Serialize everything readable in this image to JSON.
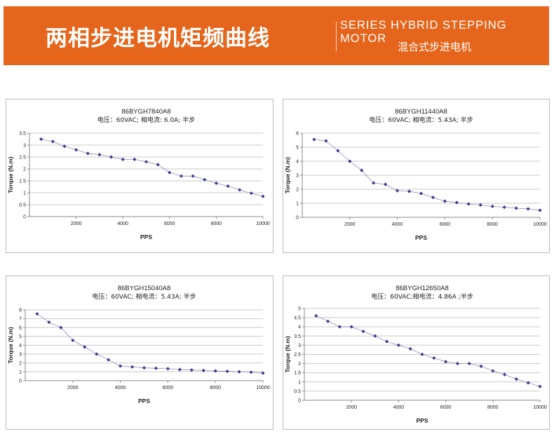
{
  "header": {
    "title_cn": "两相步进电机矩频曲线",
    "title_en": "SERIES HYBRID STEPPING MOTOR",
    "subtitle_cn": "混合式步进电机",
    "banner_color": "#e4651b"
  },
  "chart_data": [
    {
      "type": "line",
      "title": "86BYGH7840A8",
      "subtitle": "电压：60VAC; 相电流: 6.0A; 半步",
      "xlabel": "PPS",
      "ylabel": "Torque (N.m)",
      "xlim": [
        0,
        10000
      ],
      "ylim": [
        0,
        3.5
      ],
      "xticks": [
        2000,
        4000,
        6000,
        8000,
        10000
      ],
      "yticks": [
        0,
        0.5,
        1,
        1.5,
        2,
        2.5,
        3,
        3.5
      ],
      "grid": true,
      "marker_color": "#3d3d8f",
      "series": [
        {
          "x": [
            500,
            1000,
            1500,
            2000,
            2500,
            3000,
            3500,
            4000,
            4500,
            5000,
            5500,
            6000,
            6500,
            7000,
            7500,
            8000,
            8500,
            9000,
            9500,
            10000
          ],
          "y": [
            3.25,
            3.15,
            2.95,
            2.8,
            2.65,
            2.6,
            2.5,
            2.4,
            2.4,
            2.3,
            2.18,
            1.85,
            1.7,
            1.7,
            1.55,
            1.4,
            1.28,
            1.12,
            0.98,
            0.85
          ]
        }
      ]
    },
    {
      "type": "line",
      "title": "86BYGH11440A8",
      "subtitle": "电压：60VAC; 相电流：5.43A; 半步",
      "xlabel": "PPS",
      "ylabel": "Torque (N.m)",
      "xlim": [
        0,
        10000
      ],
      "ylim": [
        0,
        6
      ],
      "xticks": [
        2000,
        4000,
        6000,
        8000,
        10000
      ],
      "yticks": [
        0,
        1,
        2,
        3,
        4,
        5,
        6
      ],
      "grid": true,
      "marker_color": "#3d3d8f",
      "series": [
        {
          "x": [
            500,
            1000,
            1500,
            2000,
            2500,
            3000,
            3500,
            4000,
            4500,
            5000,
            5500,
            6000,
            6500,
            7000,
            7500,
            8000,
            8500,
            9000,
            9500,
            10000
          ],
          "y": [
            5.55,
            5.45,
            4.75,
            4.0,
            3.35,
            2.45,
            2.35,
            1.9,
            1.85,
            1.7,
            1.42,
            1.15,
            1.05,
            0.95,
            0.88,
            0.78,
            0.72,
            0.65,
            0.6,
            0.5
          ]
        }
      ]
    },
    {
      "type": "line",
      "title": "86BYGH15040A8",
      "subtitle": "电压：60VAC; 相电流：5.43A; 半步",
      "xlabel": "PPS",
      "ylabel": "Torque (N.m)",
      "xlim": [
        0,
        10000
      ],
      "ylim": [
        0,
        8
      ],
      "xticks": [
        2000,
        4000,
        6000,
        8000,
        10000
      ],
      "yticks": [
        0,
        1,
        2,
        3,
        4,
        5,
        6,
        7,
        8
      ],
      "grid": true,
      "marker_color": "#3d3d8f",
      "series": [
        {
          "x": [
            500,
            1000,
            1500,
            2000,
            2500,
            3000,
            3500,
            4000,
            4500,
            5000,
            5500,
            6000,
            6500,
            7000,
            7500,
            8000,
            8500,
            9000,
            9500,
            10000
          ],
          "y": [
            7.55,
            6.6,
            6.0,
            4.55,
            3.8,
            3.0,
            2.35,
            1.65,
            1.55,
            1.45,
            1.4,
            1.35,
            1.25,
            1.2,
            1.15,
            1.1,
            1.05,
            1.0,
            0.95,
            0.85
          ]
        }
      ]
    },
    {
      "type": "line",
      "title": "86BYGH12650A8",
      "subtitle": "电压：60VAC;相电流：4.86A ;半步",
      "xlabel": "PPS",
      "ylabel": "Torque (N.m)",
      "xlim": [
        0,
        10000
      ],
      "ylim": [
        0,
        5
      ],
      "xticks": [
        2000,
        4000,
        6000,
        8000,
        10000
      ],
      "yticks": [
        0,
        0.5,
        1,
        1.5,
        2,
        2.5,
        3,
        3.5,
        4,
        4.5,
        5
      ],
      "grid": true,
      "marker_color": "#3d3d8f",
      "series": [
        {
          "x": [
            500,
            1000,
            1500,
            2000,
            2500,
            3000,
            3500,
            4000,
            4500,
            5000,
            5500,
            6000,
            6500,
            7000,
            7500,
            8000,
            8500,
            9000,
            9500,
            10000
          ],
          "y": [
            4.6,
            4.3,
            4.0,
            4.0,
            3.75,
            3.5,
            3.2,
            3.0,
            2.8,
            2.5,
            2.3,
            2.1,
            2.0,
            2.0,
            1.85,
            1.6,
            1.4,
            1.15,
            0.95,
            0.75
          ]
        }
      ]
    }
  ]
}
